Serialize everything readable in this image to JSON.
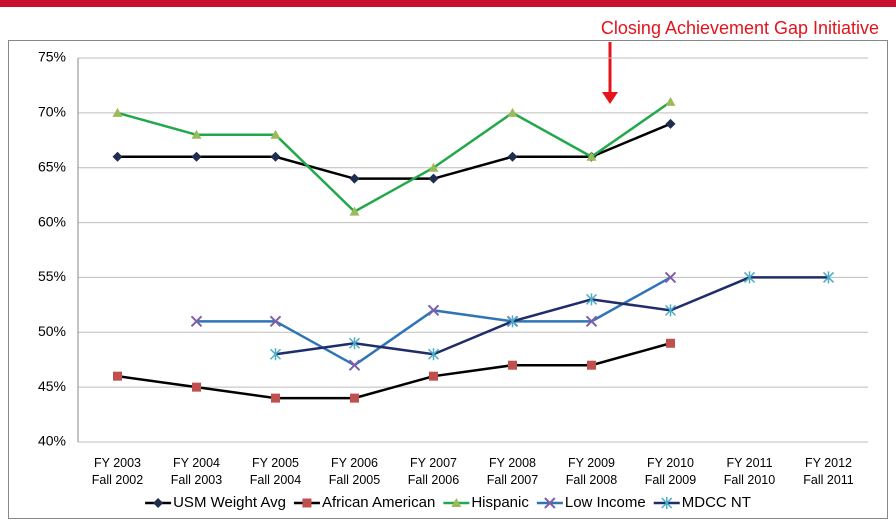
{
  "chart_data": {
    "type": "line",
    "annotation": "Closing Achievement Gap Initiative",
    "categories": [
      [
        "FY 2003",
        "Fall 2002"
      ],
      [
        "FY 2004",
        "Fall 2003"
      ],
      [
        "FY 2005",
        "Fall 2004"
      ],
      [
        "FY 2006",
        "Fall 2005"
      ],
      [
        "FY 2007",
        "Fall 2006"
      ],
      [
        "FY 2008",
        "Fall 2007"
      ],
      [
        "FY 2009",
        "Fall 2008"
      ],
      [
        "FY 2010",
        "Fall 2009"
      ],
      [
        "FY 2011",
        "Fall 2010"
      ],
      [
        "FY 2012",
        "Fall 2011"
      ]
    ],
    "series": [
      {
        "name": "USM Weight Avg",
        "color": "#000000",
        "marker_color": "#1f2d4e",
        "marker": "diamond",
        "values": [
          66,
          66,
          66,
          64,
          64,
          66,
          66,
          69,
          null,
          null
        ]
      },
      {
        "name": "African American",
        "color": "#000000",
        "marker_color": "#c0504d",
        "marker": "square",
        "values": [
          46,
          45,
          44,
          44,
          46,
          47,
          47,
          49,
          null,
          null
        ]
      },
      {
        "name": "Hispanic",
        "color": "#22a84a",
        "marker_color": "#9bbb59",
        "marker": "triangle",
        "values": [
          70,
          68,
          68,
          61,
          65,
          70,
          66,
          71,
          null,
          null
        ]
      },
      {
        "name": "Low Income",
        "color": "#2e75b6",
        "marker_color": "#7f5fa8",
        "marker": "x",
        "values": [
          null,
          51,
          51,
          47,
          52,
          51,
          51,
          55,
          null,
          null
        ]
      },
      {
        "name": "MDCC NT",
        "color": "#1f2d6b",
        "marker_color": "#4bacc6",
        "marker": "asterisk",
        "values": [
          null,
          null,
          48,
          49,
          48,
          51,
          53,
          52,
          55,
          55
        ]
      }
    ],
    "ylim": [
      40,
      75
    ],
    "yticks": [
      {
        "value": 40,
        "label": "40%"
      },
      {
        "value": 45,
        "label": "45%"
      },
      {
        "value": 50,
        "label": "50%"
      },
      {
        "value": 55,
        "label": "55%"
      },
      {
        "value": 60,
        "label": "60%"
      },
      {
        "value": 65,
        "label": "65%"
      },
      {
        "value": 70,
        "label": "70%"
      },
      {
        "value": 75,
        "label": "75%"
      }
    ],
    "grid": true,
    "legend": "bottom"
  }
}
